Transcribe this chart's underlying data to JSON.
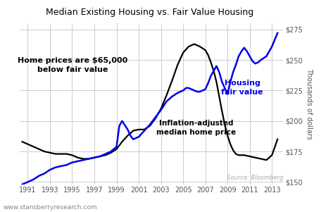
{
  "title": "Median Existing Housing vs. Fair Value Housing",
  "ylabel": "Thousands of dollars",
  "source_text": "Source: Bloomberg",
  "watermark": "www.stansberryresearch.com",
  "annotation1": "Home prices are $65,000\nbelow fair value",
  "annotation2": "Housing\nfair value",
  "annotation3": "Inflation-adjusted\nmedian home price",
  "ylim": [
    148,
    280
  ],
  "yticks": [
    150,
    175,
    200,
    225,
    250,
    275
  ],
  "ytick_labels": [
    "$150",
    "$175",
    "$200",
    "$225",
    "$250",
    "$275"
  ],
  "black_line_color": "#000000",
  "blue_line_color": "#0000ee",
  "bg_color": "#ffffff",
  "grid_color": "#cccccc",
  "median_x": [
    1990.5,
    1991,
    1991.5,
    1992,
    1992.5,
    1993,
    1993.5,
    1994,
    1994.5,
    1995,
    1995.5,
    1996,
    1996.5,
    1997,
    1997.5,
    1998,
    1998.5,
    1999,
    1999.5,
    2000,
    2000.5,
    2001,
    2001.5,
    2002,
    2002.5,
    2003,
    2003.5,
    2004,
    2004.5,
    2005,
    2005.5,
    2006,
    2006.5,
    2007,
    2007.25,
    2007.5,
    2007.75,
    2008,
    2008.25,
    2008.5,
    2008.75,
    2009,
    2009.25,
    2009.5,
    2009.75,
    2010,
    2010.5,
    2011,
    2011.5,
    2012,
    2012.5,
    2013,
    2013.5
  ],
  "median_y": [
    183,
    181,
    179,
    177,
    175,
    174,
    173,
    173,
    173,
    172,
    170,
    169,
    169,
    170,
    171,
    172,
    174,
    177,
    183,
    188,
    192,
    193,
    193,
    196,
    202,
    210,
    221,
    233,
    246,
    256,
    261,
    263,
    261,
    258,
    254,
    248,
    241,
    232,
    220,
    208,
    197,
    188,
    181,
    176,
    173,
    172,
    172,
    171,
    170,
    169,
    168,
    172,
    185
  ],
  "fair_x": [
    1990.5,
    1991,
    1991.5,
    1992,
    1992.5,
    1993,
    1993.5,
    1994,
    1994.5,
    1995,
    1995.5,
    1996,
    1996.5,
    1997,
    1997.5,
    1998,
    1998.5,
    1999,
    1999.25,
    1999.5,
    2000,
    2000.25,
    2000.5,
    2001,
    2001.5,
    2002,
    2002.5,
    2003,
    2003.5,
    2004,
    2004.5,
    2005,
    2005.25,
    2005.5,
    2005.75,
    2006,
    2006.25,
    2006.5,
    2007,
    2007.25,
    2007.5,
    2008,
    2008.25,
    2008.5,
    2009,
    2009.25,
    2009.5,
    2009.75,
    2010,
    2010.25,
    2010.5,
    2010.75,
    2011,
    2011.25,
    2011.5,
    2011.75,
    2012,
    2012.5,
    2013,
    2013.5
  ],
  "fair_y": [
    148,
    150,
    152,
    155,
    157,
    160,
    162,
    163,
    164,
    166,
    167,
    168,
    169,
    170,
    171,
    173,
    175,
    179,
    196,
    200,
    193,
    188,
    185,
    187,
    192,
    197,
    203,
    209,
    216,
    220,
    223,
    225,
    227,
    227,
    226,
    225,
    224,
    224,
    226,
    231,
    237,
    245,
    240,
    232,
    222,
    232,
    240,
    246,
    253,
    257,
    260,
    257,
    253,
    249,
    247,
    248,
    250,
    253,
    261,
    272
  ]
}
